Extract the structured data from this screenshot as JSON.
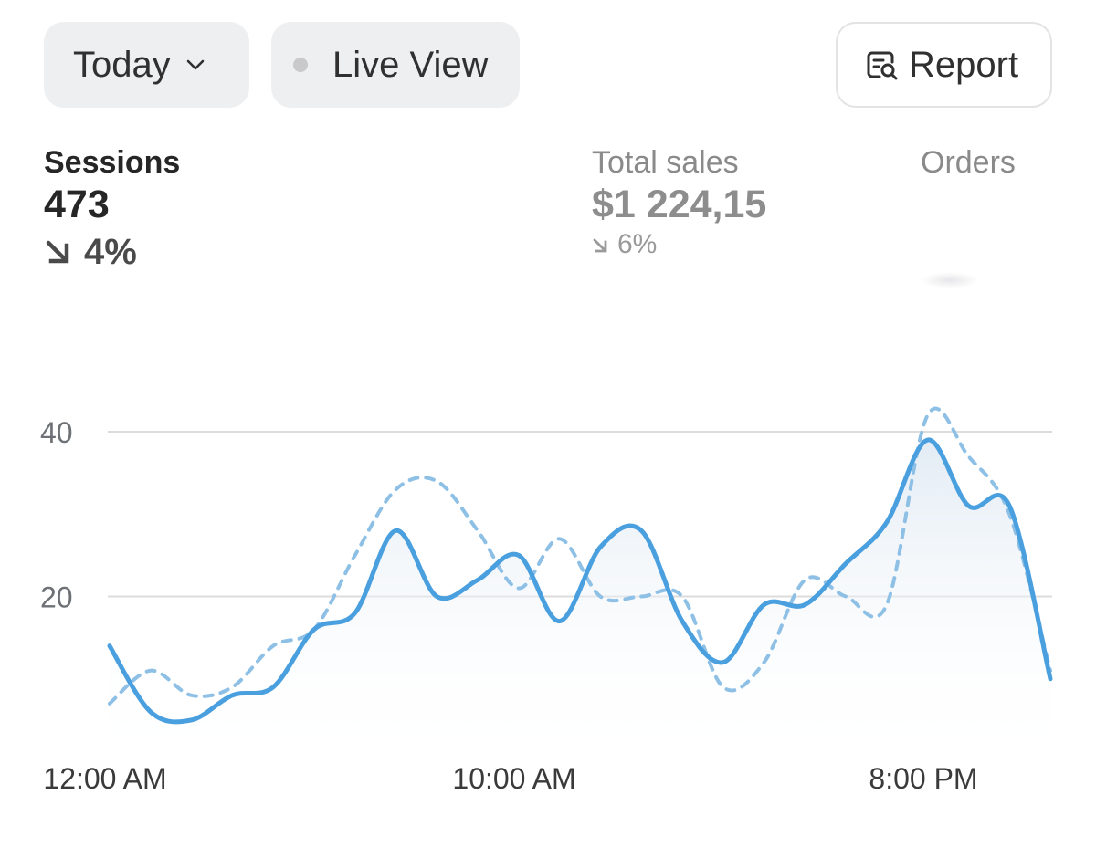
{
  "filters": {
    "date_range_label": "Today",
    "live_view_label": "Live View",
    "report_label": "Report"
  },
  "metrics": {
    "sessions": {
      "label": "Sessions",
      "value": "473",
      "delta": "4%",
      "direction": "down"
    },
    "total_sales": {
      "label": "Total sales",
      "value": "$1 224,15",
      "delta": "6%",
      "direction": "down"
    },
    "orders": {
      "label": "Orders"
    }
  },
  "colors": {
    "primary_line": "#4a9fdf",
    "comparison_line": "#8ec0e6",
    "gridline": "#dcdcdc",
    "fill": "#f1f5f9"
  },
  "icons": {
    "date_dropdown": "chevron-down-icon",
    "live": "live-status-dot-icon",
    "report": "report-search-icon",
    "trend": "arrow-down-right-icon"
  },
  "chart_data": {
    "type": "line",
    "x_labels": [
      "12:00 AM",
      "10:00 AM",
      "8:00 PM"
    ],
    "y_ticks": [
      "20",
      "40"
    ],
    "ylim": [
      0,
      44
    ],
    "grid": true,
    "series": [
      {
        "style": "solid",
        "values": [
          [
            0,
            14
          ],
          [
            1,
            6
          ],
          [
            2,
            5
          ],
          [
            3,
            8
          ],
          [
            4,
            9
          ],
          [
            5,
            16
          ],
          [
            6,
            18
          ],
          [
            7,
            28
          ],
          [
            8,
            20
          ],
          [
            9,
            22
          ],
          [
            10,
            25
          ],
          [
            11,
            17
          ],
          [
            12,
            26
          ],
          [
            13,
            28
          ],
          [
            14,
            17
          ],
          [
            15,
            12
          ],
          [
            16,
            19
          ],
          [
            17,
            19
          ],
          [
            18,
            24
          ],
          [
            19,
            29
          ],
          [
            20,
            39
          ],
          [
            21,
            31
          ],
          [
            22,
            31
          ],
          [
            23,
            10
          ]
        ]
      },
      {
        "style": "dashed",
        "values": [
          [
            0,
            7
          ],
          [
            1,
            11
          ],
          [
            2,
            8
          ],
          [
            3,
            9
          ],
          [
            4,
            14
          ],
          [
            5,
            16
          ],
          [
            6,
            25
          ],
          [
            7,
            33
          ],
          [
            8,
            34
          ],
          [
            9,
            28
          ],
          [
            10,
            21
          ],
          [
            11,
            27
          ],
          [
            12,
            20
          ],
          [
            13,
            20
          ],
          [
            14,
            20
          ],
          [
            15,
            9
          ],
          [
            16,
            12
          ],
          [
            17,
            22
          ],
          [
            18,
            20
          ],
          [
            19,
            19
          ],
          [
            20,
            42
          ],
          [
            21,
            37
          ],
          [
            22,
            30
          ],
          [
            23,
            11
          ]
        ]
      }
    ]
  }
}
